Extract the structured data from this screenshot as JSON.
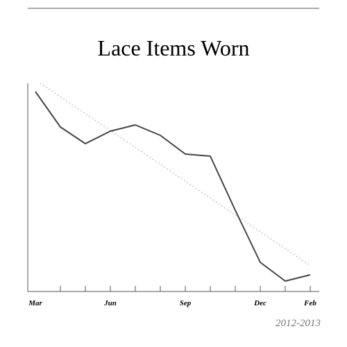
{
  "chart_data": {
    "type": "line",
    "title": "Lace Items Worn",
    "subtitle": "2012-2013",
    "categories": [
      "Mar",
      null,
      null,
      "Jun",
      null,
      null,
      "Sep",
      null,
      null,
      "Dec",
      null,
      "Feb"
    ],
    "values": [
      96,
      79,
      71,
      77,
      80,
      75,
      66,
      65,
      39,
      14,
      5,
      8
    ],
    "color": "#444444",
    "trendline": true,
    "trendline_color": "#aaaaaa",
    "ylim": [
      0,
      100
    ]
  }
}
